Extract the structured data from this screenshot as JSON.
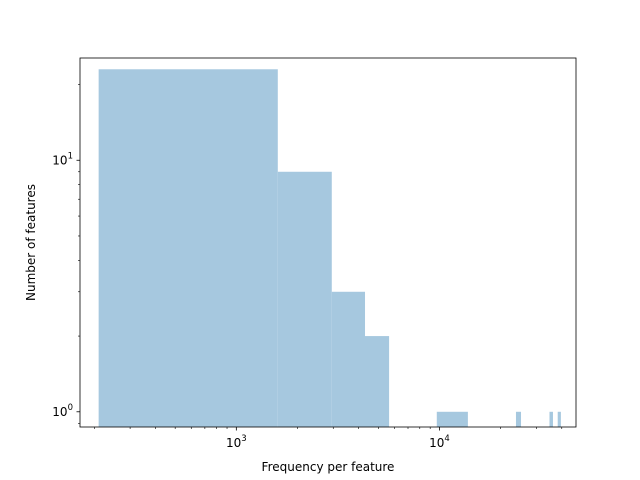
{
  "chart_data": {
    "type": "histogram",
    "xscale": "log",
    "yscale": "log",
    "xlabel": "Frequency per feature",
    "ylabel": "Number of features",
    "xlim": [
      170,
      47000
    ],
    "ylim": [
      0.87,
      25.5
    ],
    "x_ticks": [
      {
        "value": 1000,
        "base": "10",
        "exp": "3"
      },
      {
        "value": 10000,
        "base": "10",
        "exp": "4"
      }
    ],
    "y_ticks": [
      {
        "value": 1,
        "base": "10",
        "exp": "0"
      },
      {
        "value": 10,
        "base": "10",
        "exp": "1"
      }
    ],
    "bar_color": "#a6c8df",
    "bins": [
      {
        "x0": 210,
        "x1": 1600,
        "count": 23
      },
      {
        "x0": 1600,
        "x1": 2950,
        "count": 9
      },
      {
        "x0": 2950,
        "x1": 4300,
        "count": 3
      },
      {
        "x0": 4300,
        "x1": 5650,
        "count": 2
      },
      {
        "x0": 9700,
        "x1": 13800,
        "count": 1
      },
      {
        "x0": 23800,
        "x1": 25200,
        "count": 1
      },
      {
        "x0": 34800,
        "x1": 36200,
        "count": 1
      },
      {
        "x0": 38200,
        "x1": 39600,
        "count": 1
      }
    ]
  }
}
